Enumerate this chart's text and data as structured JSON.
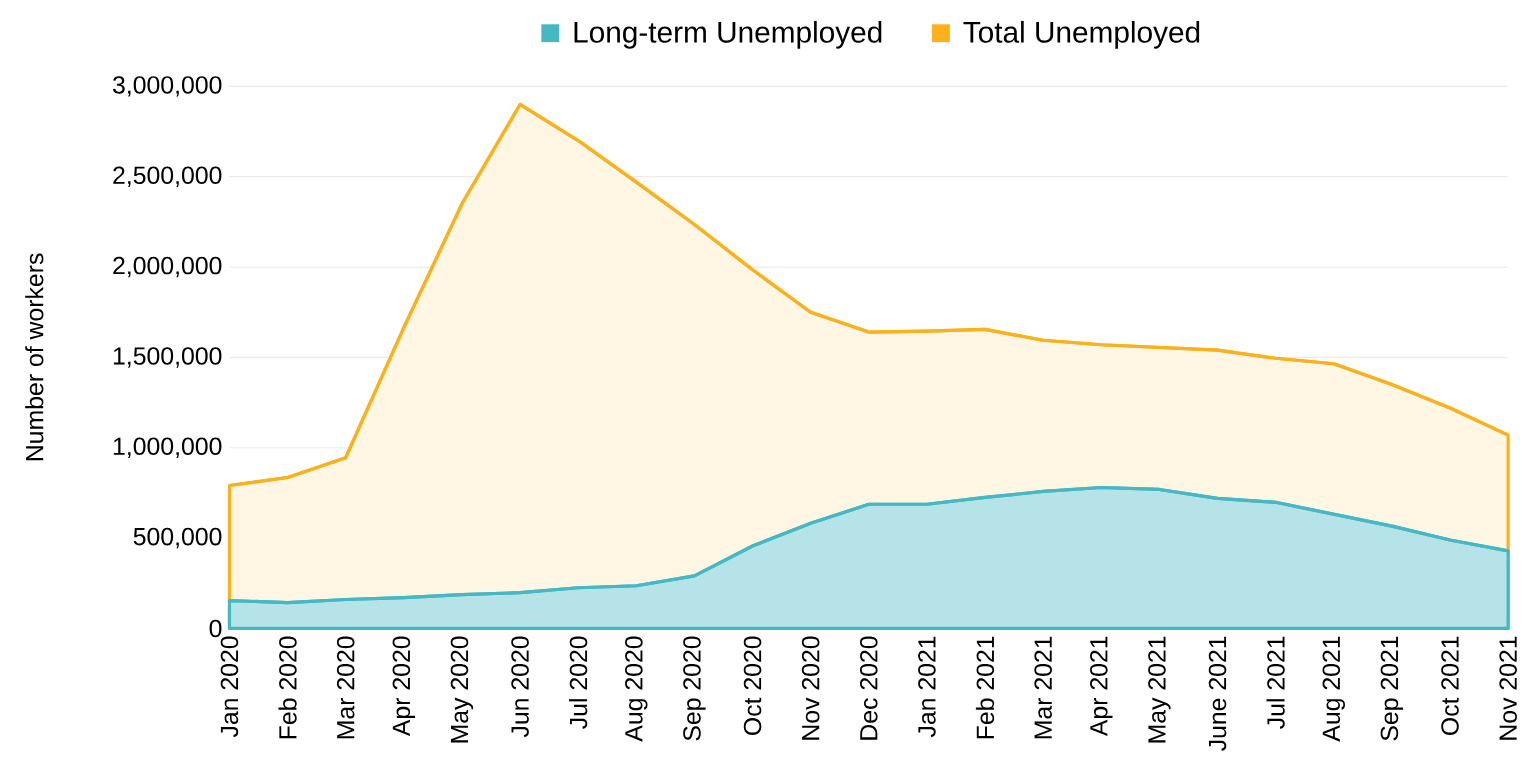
{
  "chart_data": {
    "type": "area",
    "ylabel": "Number of workers",
    "categories": [
      "Jan 2020",
      "Feb 2020",
      "Mar 2020",
      "Apr 2020",
      "May 2020",
      "Jun 2020",
      "Jul 2020",
      "Aug 2020",
      "Sep 2020",
      "Oct 2020",
      "Nov 2020",
      "Dec 2020",
      "Jan 2021",
      "Feb 2021",
      "Mar 2021",
      "Apr 2021",
      "May 2021",
      "June 2021",
      "Jul 2021",
      "Aug 2021",
      "Sep 2021",
      "Oct 2021",
      "Nov 2021"
    ],
    "series": [
      {
        "name": "Long-term Unemployed",
        "color": "#45b8c4",
        "values": [
          154000,
          143000,
          160000,
          170000,
          187000,
          198000,
          225000,
          236000,
          291000,
          456000,
          582000,
          687000,
          687000,
          725000,
          758000,
          780000,
          769000,
          720000,
          698000,
          632000,
          566000,
          489000,
          429000
        ]
      },
      {
        "name": "Total Unemployed",
        "color": "#fbb11c",
        "values": [
          791000,
          835000,
          945000,
          1665000,
          2350000,
          2900000,
          2700000,
          2470000,
          2235000,
          1985000,
          1750000,
          1640000,
          1645000,
          1655000,
          1595000,
          1570000,
          1555000,
          1540000,
          1495000,
          1465000,
          1350000,
          1220000,
          1070000
        ]
      }
    ],
    "ylim": [
      0,
      3000000
    ],
    "yticks": [
      {
        "value": 0,
        "label": "0"
      },
      {
        "value": 500000,
        "label": "500,000"
      },
      {
        "value": 1000000,
        "label": "1,000,000"
      },
      {
        "value": 1500000,
        "label": "1,500,000"
      },
      {
        "value": 2000000,
        "label": "2,000,000"
      },
      {
        "value": 2500000,
        "label": "2,500,000"
      },
      {
        "value": 3000000,
        "label": "3,000,000"
      }
    ],
    "grid": "y",
    "legend": "top"
  }
}
